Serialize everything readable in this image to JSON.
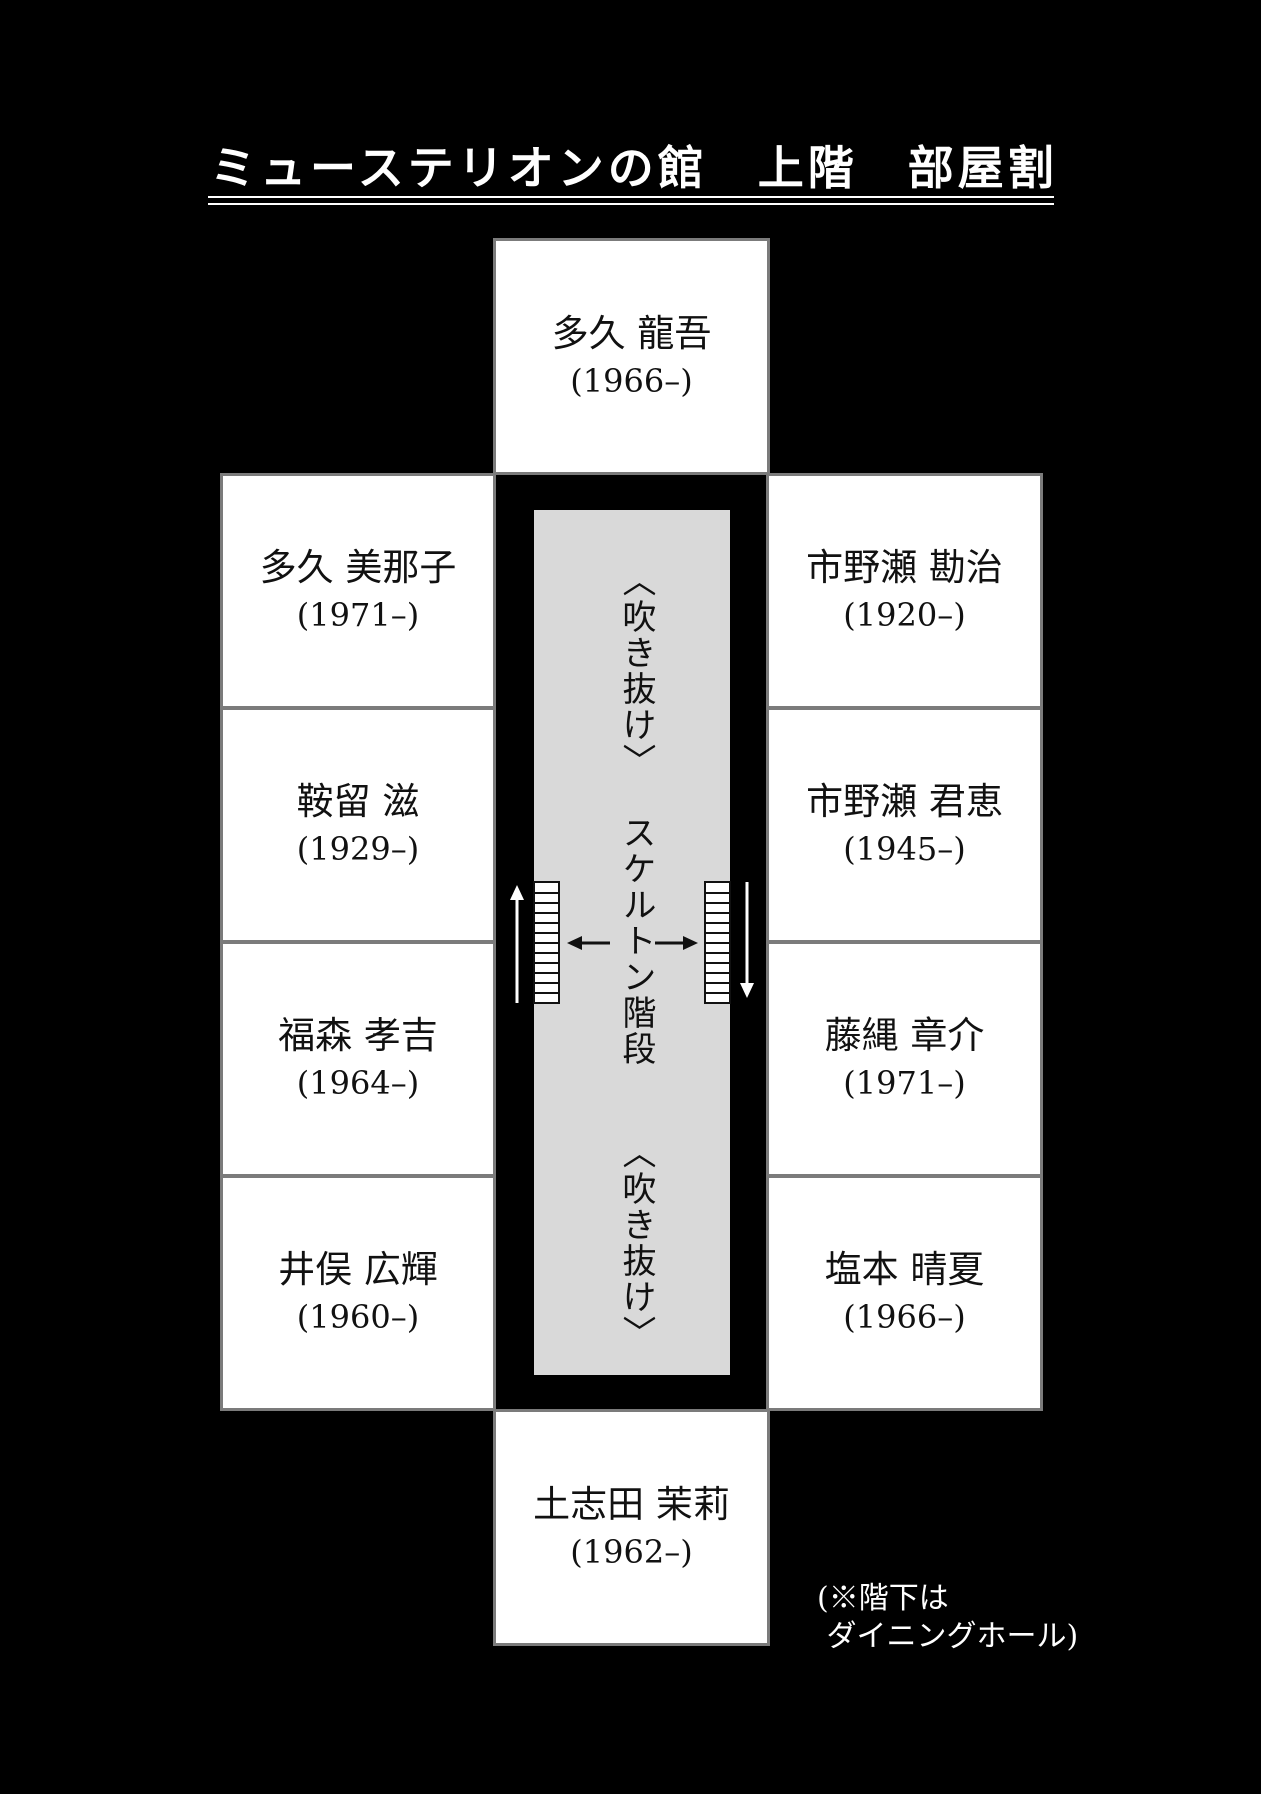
{
  "title": {
    "name": "ミューステリオンの館",
    "floor": "上階",
    "subtitle": "部屋割"
  },
  "rooms": {
    "top": {
      "name": "多久 龍吾",
      "years": "(1966–)"
    },
    "left": [
      {
        "name": "多久 美那子",
        "years": "(1971–)"
      },
      {
        "name": "鞍留 滋",
        "years": "(1929–)"
      },
      {
        "name": "福森 孝吉",
        "years": "(1964–)"
      },
      {
        "name": "井俣 広輝",
        "years": "(1960–)"
      }
    ],
    "right": [
      {
        "name": "市野瀬 勘治",
        "years": "(1920–)"
      },
      {
        "name": "市野瀬 君恵",
        "years": "(1945–)"
      },
      {
        "name": "藤縄 章介",
        "years": "(1971–)"
      },
      {
        "name": "塩本 晴夏",
        "years": "(1966–)"
      }
    ],
    "bottom": {
      "name": "土志田 茉莉",
      "years": "(1962–)"
    }
  },
  "center": {
    "void_top": "〈吹き抜け〉",
    "stairs": "スケルトン階段",
    "void_bottom": "〈吹き抜け〉"
  },
  "note": "(※階下は\n ダイニングホール)"
}
